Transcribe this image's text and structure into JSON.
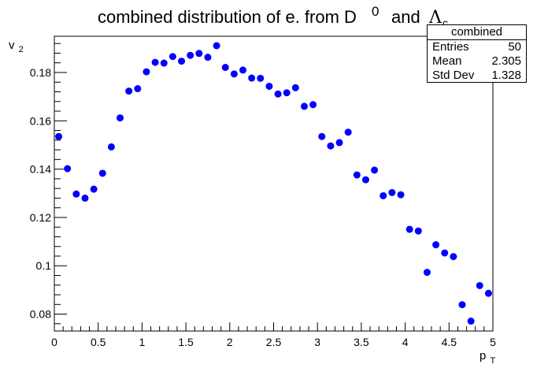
{
  "chart_data": {
    "type": "scatter",
    "title": {
      "main": "combined distribution of e. from D",
      "superscript": "0",
      "middle": "and",
      "greek": "Λ",
      "subscript": "c"
    },
    "xlabel": {
      "base": "p",
      "sub": "T"
    },
    "ylabel": {
      "base": "v",
      "sub": "2"
    },
    "xlim": [
      0,
      5
    ],
    "ylim": [
      0.073,
      0.195
    ],
    "xticks": [
      0,
      0.5,
      1,
      1.5,
      2,
      2.5,
      3,
      3.5,
      4,
      4.5,
      5
    ],
    "xtick_labels": [
      "0",
      "0.5",
      "1",
      "1.5",
      "2",
      "2.5",
      "3",
      "3.5",
      "4",
      "4.5",
      "5"
    ],
    "yticks": [
      0.08,
      0.1,
      0.12,
      0.14,
      0.16,
      0.18
    ],
    "ytick_labels": [
      "0.08",
      "0.1",
      "0.12",
      "0.14",
      "0.16",
      "0.18"
    ],
    "marker_color": "#0000ff",
    "grid": false,
    "x": [
      0.05,
      0.15,
      0.25,
      0.35,
      0.45,
      0.55,
      0.65,
      0.75,
      0.85,
      0.95,
      1.05,
      1.15,
      1.25,
      1.35,
      1.45,
      1.55,
      1.65,
      1.75,
      1.85,
      1.95,
      2.05,
      2.15,
      2.25,
      2.35,
      2.45,
      2.55,
      2.65,
      2.75,
      2.85,
      2.95,
      3.05,
      3.15,
      3.25,
      3.35,
      3.45,
      3.55,
      3.65,
      3.75,
      3.85,
      3.95,
      4.05,
      4.15,
      4.25,
      4.35,
      4.45,
      4.55,
      4.65,
      4.75,
      4.85,
      4.95
    ],
    "y": [
      0.1535,
      0.1402,
      0.1297,
      0.128,
      0.1317,
      0.1383,
      0.1492,
      0.1612,
      0.1723,
      0.1733,
      0.1803,
      0.1842,
      0.1839,
      0.1866,
      0.1847,
      0.1871,
      0.1879,
      0.1863,
      0.1911,
      0.1821,
      0.1794,
      0.181,
      0.1777,
      0.1776,
      0.1743,
      0.1711,
      0.1716,
      0.1737,
      0.166,
      0.1667,
      0.1535,
      0.1496,
      0.151,
      0.1553,
      0.1376,
      0.1356,
      0.1396,
      0.129,
      0.1303,
      0.1294,
      0.1151,
      0.1144,
      0.0973,
      0.1087,
      0.1053,
      0.1038,
      0.0839,
      0.0771,
      0.0918,
      0.0886
    ]
  },
  "stats": {
    "title": "combined",
    "rows": [
      {
        "label": "Entries",
        "value": "50"
      },
      {
        "label": "Mean",
        "value": "2.305"
      },
      {
        "label": "Std Dev",
        "value": "1.328"
      }
    ]
  }
}
